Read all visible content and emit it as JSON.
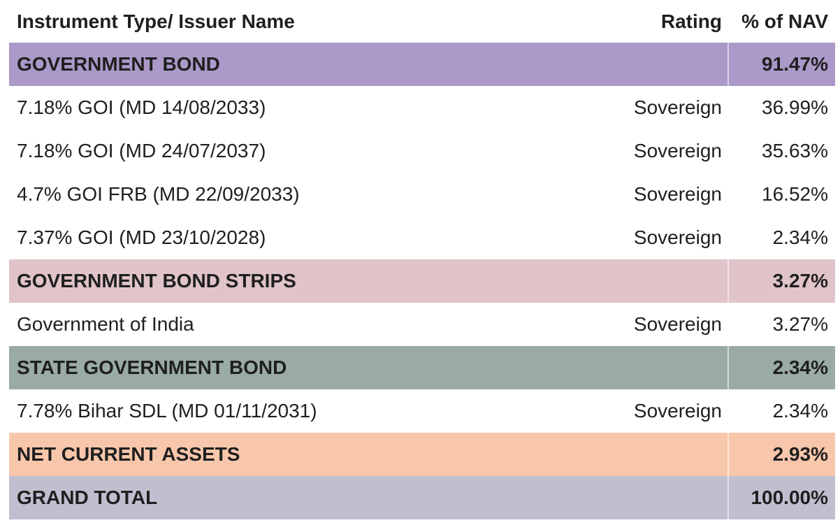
{
  "header": {
    "name": "Instrument Type/ Issuer Name",
    "rating": "Rating",
    "nav": "% of NAV"
  },
  "rows": [
    {
      "kind": "category",
      "name": "GOVERNMENT BOND",
      "rating": "",
      "nav": "91.47%",
      "color": "#ab99c9"
    },
    {
      "kind": "item",
      "name": "7.18% GOI (MD 14/08/2033)",
      "rating": "Sovereign",
      "nav": "36.99%"
    },
    {
      "kind": "item",
      "name": "7.18% GOI (MD 24/07/2037)",
      "rating": "Sovereign",
      "nav": "35.63%"
    },
    {
      "kind": "item",
      "name": "4.7% GOI FRB (MD 22/09/2033)",
      "rating": "Sovereign",
      "nav": "16.52%"
    },
    {
      "kind": "item",
      "name": "7.37% GOI (MD 23/10/2028)",
      "rating": "Sovereign",
      "nav": "2.34%"
    },
    {
      "kind": "category",
      "name": "GOVERNMENT BOND STRIPS",
      "rating": "",
      "nav": "3.27%",
      "color": "#e0c4c9"
    },
    {
      "kind": "item",
      "name": "Government of India",
      "rating": "Sovereign",
      "nav": "3.27%"
    },
    {
      "kind": "category",
      "name": "STATE GOVERNMENT BOND",
      "rating": "",
      "nav": "2.34%",
      "color": "#9aaba5"
    },
    {
      "kind": "item",
      "name": "7.78% Bihar SDL (MD 01/11/2031)",
      "rating": "Sovereign",
      "nav": "2.34%"
    },
    {
      "kind": "category",
      "name": "NET CURRENT ASSETS",
      "rating": "",
      "nav": "2.93%",
      "color": "#f8c7ab"
    },
    {
      "kind": "category",
      "name": "GRAND TOTAL",
      "rating": "",
      "nav": "100.00%",
      "color": "#c0bfd0"
    }
  ]
}
